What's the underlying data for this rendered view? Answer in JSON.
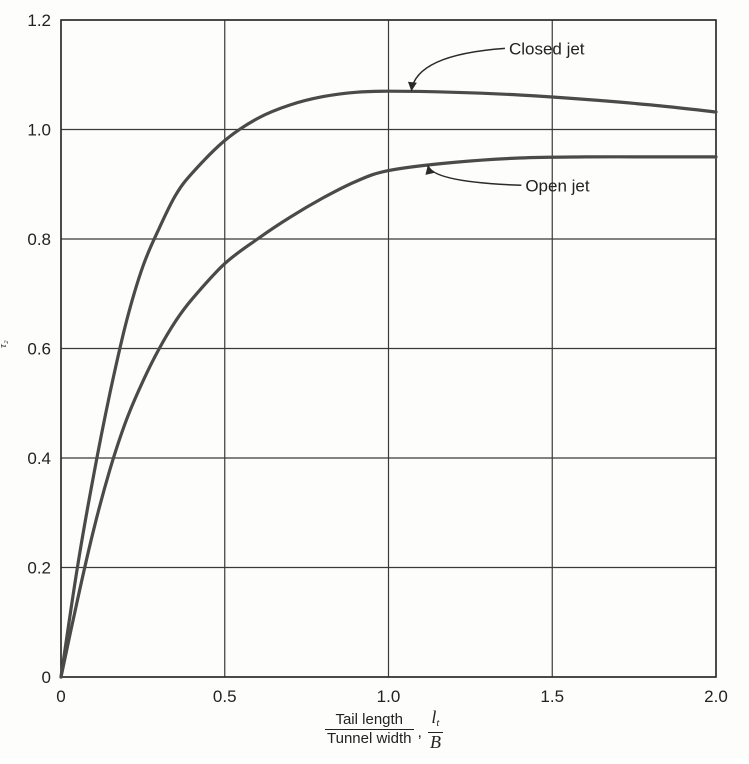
{
  "chart_data": {
    "type": "line",
    "title": "",
    "ylabel": "τ₂",
    "xlabel": {
      "numerator": "Tail length",
      "denominator": "Tunnel width",
      "symbol_num": "l",
      "symbol_sub": "t",
      "symbol_den": "B"
    },
    "xlim": [
      0,
      2.0
    ],
    "ylim": [
      0,
      1.2
    ],
    "x_ticks": [
      0,
      0.5,
      1.0,
      1.5,
      2.0
    ],
    "x_tick_labels": [
      "0",
      "0.5",
      "1.0",
      "1.5",
      "2.0"
    ],
    "y_ticks": [
      0,
      0.2,
      0.4,
      0.6,
      0.8,
      1.0,
      1.2
    ],
    "y_tick_labels": [
      "0",
      "0.2",
      "0.4",
      "0.6",
      "0.8",
      "1.0",
      "1.2"
    ],
    "grid": true,
    "series": [
      {
        "name": "Closed jet",
        "x": [
          0,
          0.05,
          0.1,
          0.15,
          0.2,
          0.25,
          0.3,
          0.35,
          0.4,
          0.5,
          0.6,
          0.7,
          0.8,
          0.9,
          1.0,
          1.2,
          1.4,
          1.6,
          1.8,
          2.0
        ],
        "y": [
          0,
          0.2,
          0.37,
          0.52,
          0.65,
          0.75,
          0.82,
          0.88,
          0.92,
          0.98,
          1.02,
          1.045,
          1.06,
          1.068,
          1.07,
          1.068,
          1.063,
          1.055,
          1.045,
          1.032
        ]
      },
      {
        "name": "Open jet",
        "x": [
          0,
          0.05,
          0.1,
          0.15,
          0.2,
          0.25,
          0.3,
          0.35,
          0.4,
          0.5,
          0.6,
          0.7,
          0.8,
          0.9,
          1.0,
          1.2,
          1.4,
          1.6,
          1.8,
          2.0
        ],
        "y": [
          0,
          0.14,
          0.27,
          0.38,
          0.47,
          0.54,
          0.6,
          0.65,
          0.69,
          0.755,
          0.8,
          0.84,
          0.875,
          0.905,
          0.925,
          0.94,
          0.948,
          0.95,
          0.95,
          0.95
        ]
      }
    ],
    "annotations": [
      {
        "text": "Closed jet",
        "target_x": 1.07,
        "target_y": 1.07,
        "label_x": 1.38,
        "label_y": 1.15
      },
      {
        "text": "Open jet",
        "target_x": 1.12,
        "target_y": 0.935,
        "label_x": 1.43,
        "label_y": 0.9
      }
    ],
    "colors": {
      "curve": "#4a4a4a",
      "grid": "#3a3a3a",
      "text": "#222222"
    }
  }
}
